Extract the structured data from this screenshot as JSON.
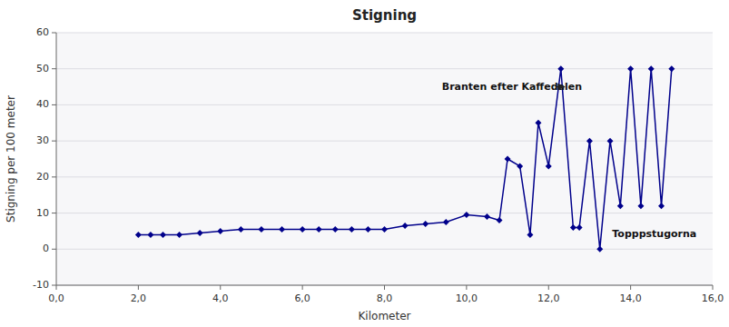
{
  "chart_data": {
    "type": "line",
    "title": "Stigning",
    "x_label": "Kilometer",
    "y_label": "Stigning per 100 meter",
    "xlim": [
      0,
      16
    ],
    "ylim": [
      -10,
      60
    ],
    "xticks": [
      {
        "value": 0,
        "label": "0,0"
      },
      {
        "value": 2,
        "label": "2,0"
      },
      {
        "value": 4,
        "label": "4,0"
      },
      {
        "value": 6,
        "label": "6,0"
      },
      {
        "value": 8,
        "label": "8,0"
      },
      {
        "value": 10,
        "label": "10,0"
      },
      {
        "value": 12,
        "label": "12,0"
      },
      {
        "value": 14,
        "label": "14,0"
      },
      {
        "value": 16,
        "label": "16,0"
      }
    ],
    "yticks": [
      -10,
      0,
      10,
      20,
      30,
      40,
      50,
      60
    ],
    "x": [
      2.0,
      2.3,
      2.6,
      3.0,
      3.5,
      4.0,
      4.5,
      5.0,
      5.5,
      6.0,
      6.4,
      6.8,
      7.2,
      7.6,
      8.0,
      8.5,
      9.0,
      9.5,
      10.0,
      10.5,
      10.8,
      11.0,
      11.3,
      11.55,
      11.75,
      12.0,
      12.3,
      12.6,
      12.75,
      13.0,
      13.25,
      13.5,
      13.75,
      14.0,
      14.25,
      14.5,
      14.75,
      15.0
    ],
    "values": [
      4,
      4,
      4,
      4,
      4.5,
      5,
      5.5,
      5.5,
      5.5,
      5.5,
      5.5,
      5.5,
      5.5,
      5.5,
      5.5,
      6.5,
      7,
      7.5,
      9.5,
      9,
      8,
      25,
      23,
      4,
      35,
      23,
      50,
      6,
      6,
      30,
      0,
      30,
      12,
      50,
      12,
      50,
      12,
      50
    ],
    "color": "#00008B",
    "marker": "diamond",
    "grid": true,
    "annotations": [
      {
        "text": "Branten efter Kaffedalen",
        "x": 9.4,
        "y": 45,
        "arrow_x": 12.4,
        "arrow_y": 45
      },
      {
        "text": "Topppstugorna",
        "x": 13.55,
        "y": 4
      }
    ]
  }
}
